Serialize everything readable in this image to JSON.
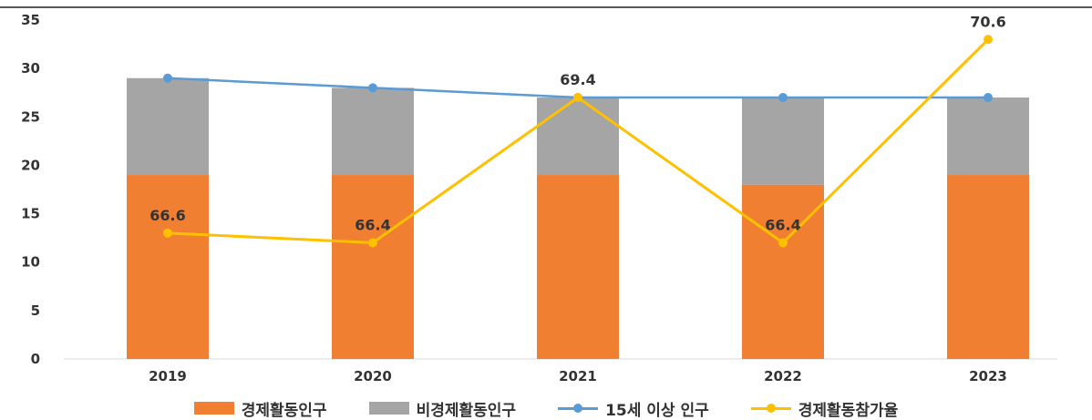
{
  "chart_data": {
    "type": "bar",
    "categories": [
      "2019",
      "2020",
      "2021",
      "2022",
      "2023"
    ],
    "ylim": [
      0,
      35
    ],
    "yticks": [
      "0",
      "5",
      "10",
      "15",
      "20",
      "25",
      "30",
      "35"
    ],
    "series": [
      {
        "name": "경제활동인구",
        "kind": "stacked-bar",
        "values": [
          19,
          19,
          19,
          18,
          19
        ],
        "color": "#f07f32"
      },
      {
        "name": "비경제활동인구",
        "kind": "stacked-bar",
        "values": [
          10,
          9,
          8,
          9,
          8
        ],
        "color": "#a5a5a5"
      },
      {
        "name": "15세 이상 인구",
        "kind": "line",
        "values": [
          29,
          28,
          27,
          27,
          27
        ],
        "color": "#5b9bd5"
      },
      {
        "name": "경제활동참가율",
        "kind": "line",
        "values": [
          66.6,
          66.4,
          69.4,
          66.4,
          70.6
        ],
        "color": "#ffc000"
      }
    ],
    "data_labels": [
      "66.6",
      "66.4",
      "69.4",
      "66.4",
      "70.6"
    ],
    "legend_position": "bottom",
    "grid": false
  }
}
